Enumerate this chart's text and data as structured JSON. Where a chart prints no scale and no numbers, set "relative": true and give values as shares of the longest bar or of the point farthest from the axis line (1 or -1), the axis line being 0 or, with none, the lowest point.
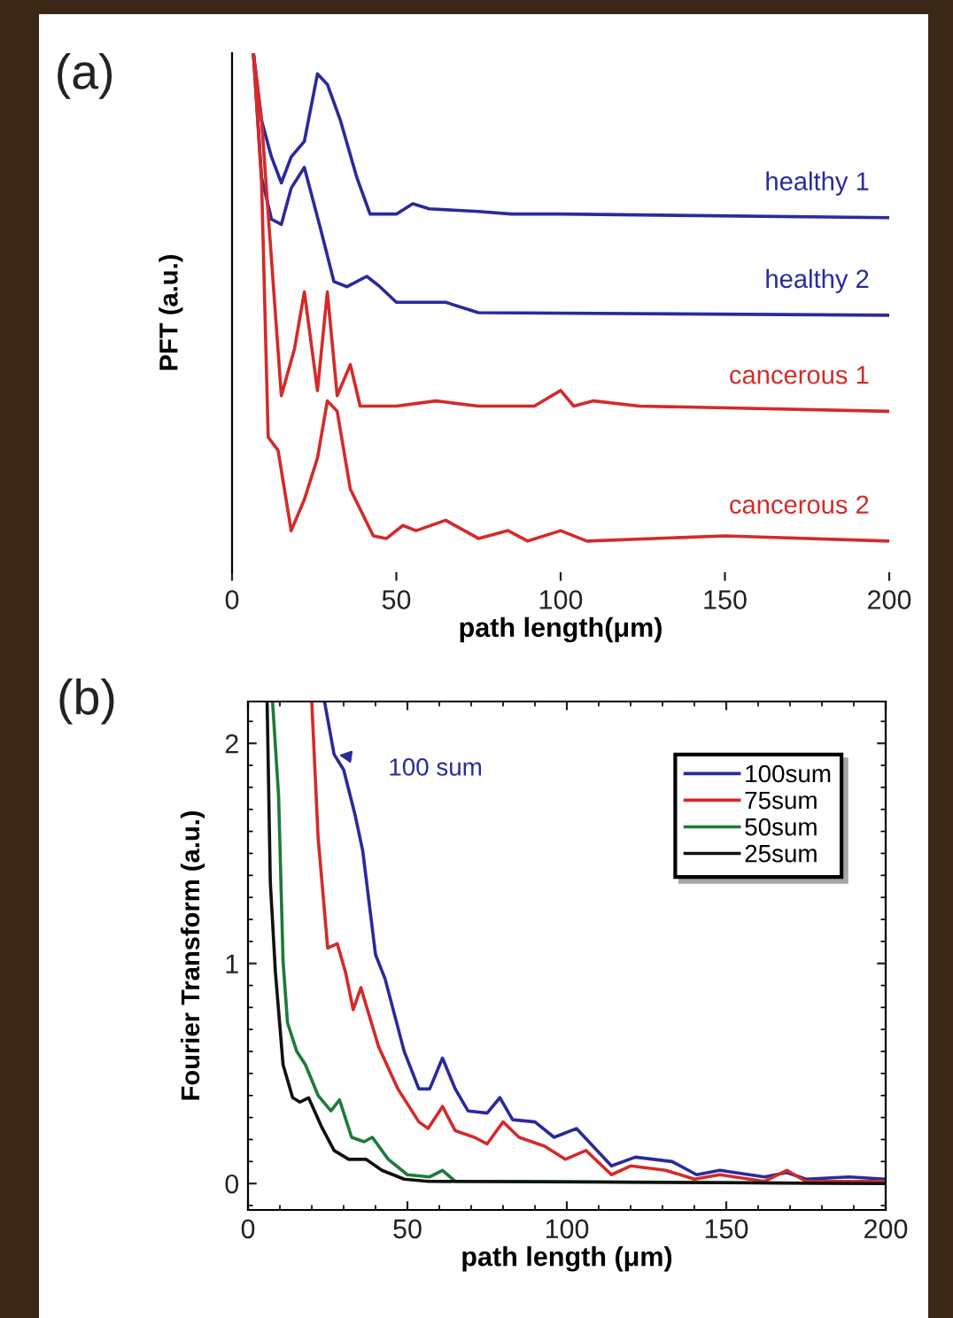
{
  "chart_data": [
    {
      "type": "line",
      "title": "(a)",
      "xlabel": "path length(μm)",
      "ylabel": "PFT (a.u.)",
      "relative": true,
      "xlim": [
        0,
        200
      ],
      "xticks": [
        0,
        50,
        100,
        150,
        200
      ],
      "grid": false,
      "legend": false,
      "series": [
        {
          "name": "healthy 1",
          "color": "#2a2a9c",
          "x": [
            6.5,
            9,
            12,
            15,
            18,
            22,
            26,
            29,
            33,
            38,
            42,
            50,
            55,
            60,
            75,
            85,
            100,
            200
          ],
          "values": [
            1.0,
            0.87,
            0.8,
            0.75,
            0.8,
            0.83,
            0.96,
            0.94,
            0.87,
            0.76,
            0.69,
            0.69,
            0.71,
            0.7,
            0.695,
            0.69,
            0.69,
            0.683
          ]
        },
        {
          "name": "healthy 2",
          "color": "#2a2a9c",
          "x": [
            6.5,
            9,
            12,
            15,
            18,
            22,
            27,
            31,
            35,
            41,
            45,
            50,
            65,
            75,
            200
          ],
          "values": [
            1.0,
            0.76,
            0.68,
            0.67,
            0.74,
            0.78,
            0.66,
            0.56,
            0.55,
            0.57,
            0.55,
            0.52,
            0.52,
            0.5,
            0.495
          ]
        },
        {
          "name": "cancerous 1",
          "color": "#d42a2a",
          "x": [
            6.5,
            9,
            11,
            15,
            19,
            22,
            26,
            29,
            32,
            36,
            39,
            50,
            62,
            75,
            92,
            100,
            104,
            110,
            124,
            200
          ],
          "values": [
            1.0,
            0.87,
            0.69,
            0.34,
            0.43,
            0.54,
            0.35,
            0.54,
            0.34,
            0.4,
            0.32,
            0.32,
            0.33,
            0.32,
            0.32,
            0.35,
            0.32,
            0.33,
            0.32,
            0.31
          ]
        },
        {
          "name": "cancerous 2",
          "color": "#d42a2a",
          "x": [
            6.5,
            9,
            11,
            14,
            18,
            22,
            26,
            29,
            32,
            36,
            43,
            47,
            52,
            56,
            65,
            75,
            84,
            90,
            100,
            108,
            150,
            200
          ],
          "values": [
            1.0,
            0.75,
            0.26,
            0.235,
            0.08,
            0.14,
            0.22,
            0.33,
            0.31,
            0.16,
            0.07,
            0.065,
            0.09,
            0.08,
            0.1,
            0.065,
            0.08,
            0.06,
            0.08,
            0.06,
            0.07,
            0.06
          ]
        }
      ]
    },
    {
      "type": "line",
      "title": "(b)",
      "xlabel": "path length (μm)",
      "ylabel": "Fourier Transform (a.u.)",
      "xlim": [
        0,
        200
      ],
      "xticks": [
        0,
        50,
        100,
        150,
        200
      ],
      "ylim": [
        -0.12,
        2.19
      ],
      "yticks": [
        0,
        1,
        2
      ],
      "grid": false,
      "legend": "top right",
      "annotations": [
        {
          "text": "100 sum",
          "x": 27,
          "y": 1.95
        }
      ],
      "series": [
        {
          "name": "100sum",
          "color": "#2a2a9c",
          "x": [
            24,
            27,
            30,
            33.5,
            36,
            40,
            43,
            49,
            53.6,
            57,
            61,
            65,
            69,
            75,
            79,
            83,
            90,
            96,
            103,
            114,
            121.5,
            133,
            140.7,
            148,
            162,
            169,
            175,
            188.5,
            200
          ],
          "values": [
            2.19,
            1.95,
            1.88,
            1.68,
            1.51,
            1.04,
            0.93,
            0.6,
            0.43,
            0.43,
            0.57,
            0.43,
            0.33,
            0.32,
            0.39,
            0.29,
            0.28,
            0.21,
            0.25,
            0.08,
            0.12,
            0.1,
            0.04,
            0.06,
            0.03,
            0.05,
            0.02,
            0.03,
            0.02
          ]
        },
        {
          "name": "75sum",
          "color": "#d42a2a",
          "x": [
            20,
            22,
            25,
            28,
            30.6,
            33,
            35.4,
            41,
            47,
            53.6,
            56.5,
            61,
            65,
            71,
            75,
            80,
            85,
            93,
            99.5,
            106,
            114,
            120,
            131,
            140,
            148,
            162,
            169,
            175,
            200
          ],
          "values": [
            2.19,
            1.57,
            1.07,
            1.09,
            0.96,
            0.79,
            0.89,
            0.62,
            0.43,
            0.28,
            0.25,
            0.35,
            0.24,
            0.21,
            0.18,
            0.28,
            0.21,
            0.17,
            0.11,
            0.15,
            0.04,
            0.08,
            0.06,
            0.02,
            0.04,
            0.01,
            0.06,
            0.01,
            0.01
          ]
        },
        {
          "name": "50sum",
          "color": "#1f7a3a",
          "x": [
            7.7,
            9.6,
            11,
            12.4,
            15.3,
            18,
            22,
            26,
            28.7,
            32.5,
            36.4,
            39,
            44,
            50,
            57,
            61,
            65,
            85,
            200
          ],
          "values": [
            2.19,
            1.76,
            1.01,
            0.73,
            0.6,
            0.54,
            0.4,
            0.33,
            0.38,
            0.21,
            0.19,
            0.21,
            0.11,
            0.04,
            0.03,
            0.06,
            0.01,
            0.01,
            0
          ]
        },
        {
          "name": "25sum",
          "color": "#111111",
          "x": [
            6,
            7,
            8.6,
            11,
            14,
            16.3,
            19,
            23,
            27,
            31.6,
            37,
            42,
            49,
            56.5,
            200
          ],
          "values": [
            2.19,
            1.37,
            0.96,
            0.54,
            0.39,
            0.37,
            0.39,
            0.26,
            0.15,
            0.11,
            0.11,
            0.06,
            0.02,
            0.01,
            0
          ]
        }
      ]
    }
  ]
}
